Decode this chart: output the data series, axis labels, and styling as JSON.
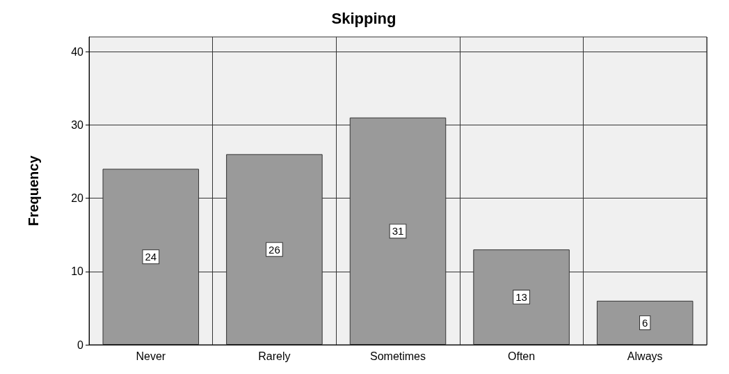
{
  "chart_data": {
    "type": "bar",
    "title": "Skipping",
    "ylabel": "Frequency",
    "categories": [
      "Never",
      "Rarely",
      "Sometimes",
      "Often",
      "Always"
    ],
    "values": [
      24,
      26,
      31,
      13,
      6
    ],
    "color": "#9a9a9a",
    "ylim": [
      0,
      42
    ],
    "yticks": [
      0,
      10,
      20,
      30,
      40
    ],
    "grid": true,
    "data_labels": true
  }
}
